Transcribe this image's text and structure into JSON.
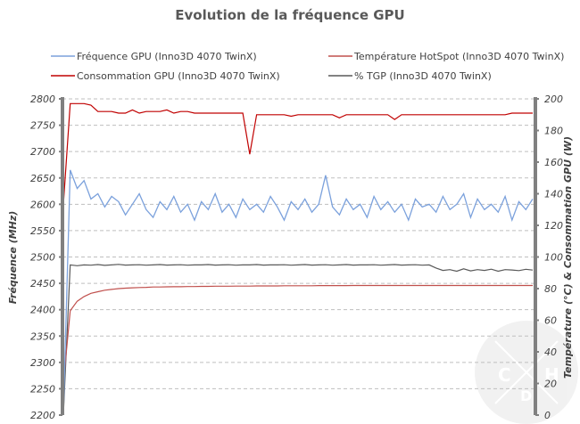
{
  "chart_data": {
    "type": "line",
    "title": "Evolution de la fréquence GPU",
    "ylabel": "Fréquence (MHz)",
    "y2label": "Température (°C) & Consommation GPU (W)",
    "ylim": [
      2200,
      2800
    ],
    "y2lim": [
      0,
      200
    ],
    "yticks": [
      "2200",
      "2250",
      "2300",
      "2350",
      "2400",
      "2450",
      "2500",
      "2550",
      "2600",
      "2650",
      "2700",
      "2750",
      "2800"
    ],
    "y2ticks": [
      "0",
      "20",
      "40",
      "60",
      "80",
      "100",
      "120",
      "140",
      "160",
      "180",
      "200"
    ],
    "grid": true,
    "legend_position": "top",
    "watermark": "CHD",
    "series": [
      {
        "name": "Fréquence GPU (Inno3D 4070 TwinX)",
        "axis": "left",
        "color": "#7ba1dc",
        "values": [
          2200,
          2665,
          2630,
          2645,
          2610,
          2620,
          2595,
          2615,
          2605,
          2580,
          2600,
          2620,
          2590,
          2575,
          2605,
          2590,
          2615,
          2585,
          2600,
          2570,
          2605,
          2590,
          2620,
          2585,
          2600,
          2575,
          2610,
          2590,
          2600,
          2585,
          2615,
          2595,
          2570,
          2605,
          2590,
          2610,
          2585,
          2600,
          2655,
          2595,
          2580,
          2610,
          2590,
          2600,
          2575,
          2615,
          2590,
          2605,
          2585,
          2600,
          2570,
          2610,
          2595,
          2600,
          2585,
          2615,
          2590,
          2600,
          2620,
          2575,
          2610,
          2590,
          2600,
          2585,
          2615,
          2570,
          2605,
          2590,
          2610
        ]
      },
      {
        "name": "Température HotSpot (Inno3D 4070 TwinX)",
        "axis": "right",
        "color": "#c0504d",
        "values": [
          20,
          66,
          72,
          75,
          77,
          78,
          79,
          79.5,
          80,
          80.3,
          80.5,
          80.7,
          80.8,
          81,
          81,
          81.1,
          81.2,
          81.2,
          81.3,
          81.3,
          81.4,
          81.4,
          81.5,
          81.5,
          81.5,
          81.6,
          81.6,
          81.6,
          81.7,
          81.7,
          81.7,
          81.7,
          81.8,
          81.8,
          81.8,
          81.8,
          81.8,
          81.9,
          81.9,
          81.9,
          81.9,
          81.9,
          82,
          82,
          82,
          82,
          82,
          82,
          82,
          82,
          82,
          82,
          82,
          82,
          82,
          82,
          82,
          82,
          82,
          82,
          82,
          82,
          82,
          82,
          82,
          82,
          82,
          82,
          82
        ]
      },
      {
        "name": "Consommation GPU (Inno3D 4070 TwinX)",
        "axis": "right",
        "color": "#c00000",
        "values": [
          133,
          197,
          197,
          197,
          196,
          192,
          192,
          192,
          191,
          191,
          193,
          191,
          192,
          192,
          192,
          193,
          191,
          192,
          192,
          191,
          191,
          191,
          191,
          191,
          191,
          191,
          191,
          165,
          190,
          190,
          190,
          190,
          190,
          189,
          190,
          190,
          190,
          190,
          190,
          190,
          188,
          190,
          190,
          190,
          190,
          190,
          190,
          190,
          187,
          190,
          190,
          190,
          190,
          190,
          190,
          190,
          190,
          190,
          190,
          190,
          190,
          190,
          190,
          190,
          190,
          191,
          191,
          191,
          191
        ]
      },
      {
        "name": "% TGP (Inno3D 4070 TwinX)",
        "axis": "right",
        "color": "#595959",
        "values": [
          0,
          95,
          94.5,
          95,
          94.8,
          95.2,
          94.7,
          95,
          95.3,
          94.9,
          95,
          95.1,
          94.8,
          95,
          95.2,
          94.9,
          95,
          95.1,
          94.8,
          95,
          95,
          95.2,
          94.9,
          95,
          95.1,
          94.8,
          95,
          95,
          95.2,
          94.9,
          95,
          95,
          95.1,
          94.8,
          95,
          95.2,
          94.9,
          95,
          95.1,
          94.8,
          95,
          95.2,
          94.9,
          95,
          95,
          95.1,
          94.8,
          95,
          95.2,
          94.9,
          95,
          95.1,
          94.8,
          95,
          93,
          91.5,
          92,
          91,
          92.5,
          91.2,
          92,
          91.5,
          92.3,
          91,
          92,
          91.8,
          91.4,
          92.2,
          91.7
        ]
      }
    ]
  }
}
